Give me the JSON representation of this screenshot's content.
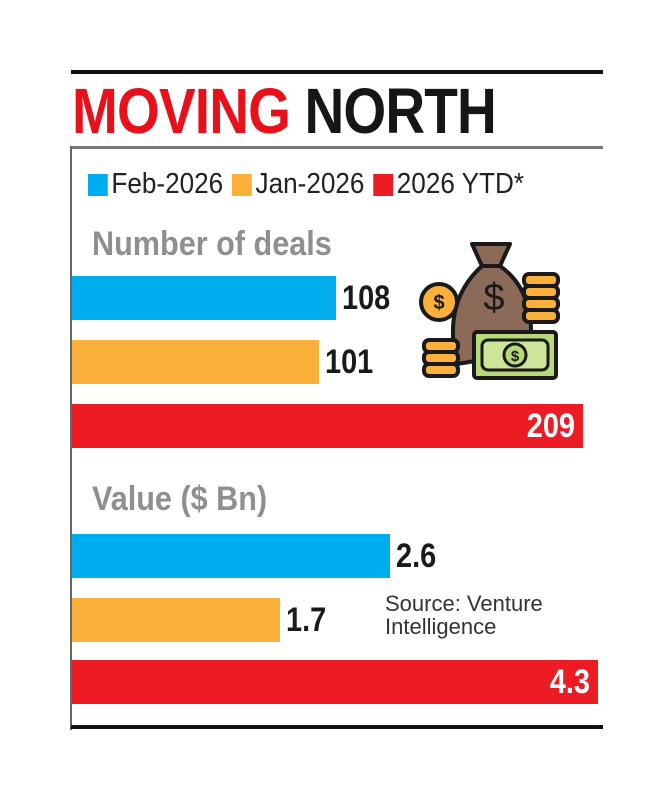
{
  "title": {
    "part1": "MOVING",
    "part2": "NORTH"
  },
  "legend": [
    {
      "label": "Feb-2026",
      "color": "#00aeef"
    },
    {
      "label": "Jan-2026",
      "color": "#fbb03b"
    },
    {
      "label": "2026 YTD*",
      "color": "#ed1c24"
    }
  ],
  "source": {
    "line1": "Source: Venture",
    "line2": "Intelligence"
  },
  "icon": "money-bag-coins-cash-icon",
  "chart_data": [
    {
      "type": "bar",
      "orientation": "horizontal",
      "title": "Number of deals",
      "categories": [
        "Feb-2026",
        "Jan-2026",
        "2026 YTD*"
      ],
      "values": [
        108,
        101,
        209
      ],
      "labels": [
        "108",
        "101",
        "209"
      ]
    },
    {
      "type": "bar",
      "orientation": "horizontal",
      "title": "Value ($ Bn)",
      "categories": [
        "Feb-2026",
        "Jan-2026",
        "2026 YTD*"
      ],
      "values": [
        2.6,
        1.7,
        4.3
      ],
      "labels": [
        "2.6",
        "1.7",
        "4.3"
      ]
    }
  ]
}
